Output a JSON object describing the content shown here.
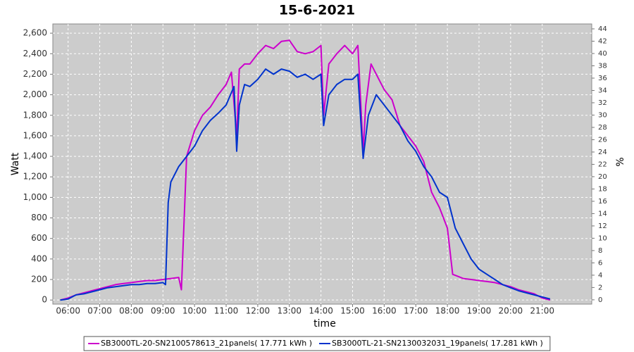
{
  "chart_data": {
    "type": "line",
    "title": "15-6-2021",
    "x_label": "time",
    "y_label": "Watt",
    "y2_label": "%",
    "xlim": [
      "05:31",
      "22:34"
    ],
    "xticks": [
      "06:00",
      "07:00",
      "08:00",
      "09:00",
      "10:00",
      "11:00",
      "12:00",
      "13:00",
      "14:00",
      "15:00",
      "16:00",
      "17:00",
      "18:00",
      "19:00",
      "20:00",
      "21:00"
    ],
    "ylim": [
      -40,
      2690
    ],
    "yticks": [
      0,
      200,
      400,
      600,
      800,
      {
        "value": 1000,
        "label": "1,000"
      },
      {
        "value": 1200,
        "label": "1,200"
      },
      {
        "value": 1400,
        "label": "1,400"
      },
      {
        "value": 1600,
        "label": "1,600"
      },
      {
        "value": 1800,
        "label": "1,800"
      },
      {
        "value": 2000,
        "label": "2,000"
      },
      {
        "value": 2200,
        "label": "2,200"
      },
      {
        "value": 2400,
        "label": "2,400"
      },
      {
        "value": 2600,
        "label": "2,600"
      }
    ],
    "y2lim": [
      -0.7,
      44.8
    ],
    "y2ticks": [
      0,
      2,
      4,
      6,
      8,
      10,
      12,
      14,
      16,
      18,
      20,
      22,
      24,
      26,
      28,
      30,
      32,
      34,
      36,
      38,
      40,
      42,
      44
    ],
    "grid": true,
    "legend": "bottom",
    "series": [
      {
        "name": "SB3000TL-20-SN2100578613_21panels( 17.771 kWh )",
        "color": "#cc00cc",
        "x": [
          "05:45",
          "06:00",
          "06:15",
          "06:30",
          "06:45",
          "07:00",
          "07:15",
          "07:30",
          "07:45",
          "08:00",
          "08:15",
          "08:30",
          "08:45",
          "09:00",
          "09:15",
          "09:30",
          "09:35",
          "09:45",
          "10:00",
          "10:15",
          "10:30",
          "10:45",
          "11:00",
          "11:10",
          "11:20",
          "11:25",
          "11:35",
          "11:45",
          "12:00",
          "12:15",
          "12:30",
          "12:45",
          "13:00",
          "13:15",
          "13:30",
          "13:45",
          "14:00",
          "14:05",
          "14:15",
          "14:30",
          "14:45",
          "15:00",
          "15:10",
          "15:20",
          "15:25",
          "15:35",
          "15:45",
          "16:00",
          "16:15",
          "16:30",
          "16:45",
          "17:00",
          "17:15",
          "17:30",
          "17:45",
          "18:00",
          "18:10",
          "18:20",
          "18:30",
          "18:45",
          "19:00",
          "19:15",
          "19:30",
          "19:45",
          "20:00",
          "20:15",
          "20:30",
          "20:45",
          "21:00",
          "21:15"
        ],
        "values": [
          0,
          20,
          50,
          70,
          90,
          110,
          130,
          150,
          160,
          170,
          180,
          190,
          190,
          200,
          210,
          220,
          100,
          1400,
          1650,
          1800,
          1880,
          2000,
          2100,
          2220,
          1600,
          2250,
          2300,
          2300,
          2400,
          2480,
          2450,
          2520,
          2530,
          2420,
          2400,
          2420,
          2480,
          1800,
          2300,
          2400,
          2480,
          2400,
          2480,
          1450,
          1900,
          2300,
          2200,
          2050,
          1950,
          1700,
          1600,
          1500,
          1350,
          1050,
          900,
          700,
          250,
          230,
          210,
          200,
          190,
          180,
          170,
          150,
          130,
          100,
          80,
          60,
          20,
          0
        ]
      },
      {
        "name": "SB3000TL-21-SN2130032031_19panels( 17.281 kWh )",
        "color": "#0033cc",
        "x": [
          "05:45",
          "06:00",
          "06:15",
          "06:30",
          "06:45",
          "07:00",
          "07:15",
          "07:30",
          "07:45",
          "08:00",
          "08:15",
          "08:30",
          "08:45",
          "09:00",
          "09:05",
          "09:10",
          "09:15",
          "09:30",
          "09:45",
          "10:00",
          "10:15",
          "10:30",
          "10:45",
          "11:00",
          "11:15",
          "11:20",
          "11:25",
          "11:35",
          "11:45",
          "12:00",
          "12:15",
          "12:30",
          "12:45",
          "13:00",
          "13:15",
          "13:30",
          "13:45",
          "14:00",
          "14:05",
          "14:15",
          "14:30",
          "14:45",
          "15:00",
          "15:10",
          "15:20",
          "15:30",
          "15:45",
          "16:00",
          "16:15",
          "16:30",
          "16:45",
          "17:00",
          "17:15",
          "17:30",
          "17:45",
          "18:00",
          "18:15",
          "18:30",
          "18:45",
          "19:00",
          "19:15",
          "19:30",
          "19:45",
          "20:00",
          "20:15",
          "20:30",
          "20:45",
          "21:00",
          "21:15"
        ],
        "values": [
          0,
          10,
          50,
          60,
          80,
          100,
          120,
          130,
          140,
          150,
          150,
          160,
          160,
          170,
          150,
          950,
          1150,
          1300,
          1400,
          1500,
          1650,
          1750,
          1820,
          1900,
          2080,
          1450,
          1900,
          2100,
          2080,
          2150,
          2250,
          2200,
          2250,
          2230,
          2170,
          2200,
          2150,
          2200,
          1700,
          2000,
          2100,
          2150,
          2150,
          2200,
          1380,
          1800,
          2000,
          1900,
          1800,
          1700,
          1550,
          1450,
          1300,
          1200,
          1050,
          1000,
          700,
          550,
          400,
          300,
          250,
          200,
          150,
          120,
          90,
          70,
          50,
          30,
          10
        ]
      }
    ]
  }
}
